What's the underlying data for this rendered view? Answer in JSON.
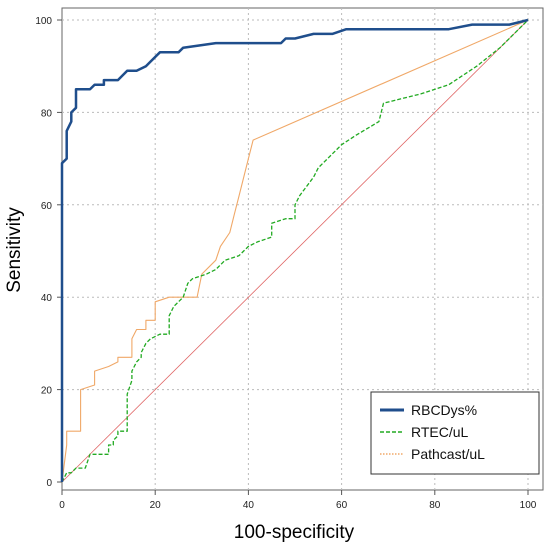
{
  "chart_data": {
    "type": "line",
    "title": "",
    "xlabel": "100-specificity",
    "ylabel": "Sensitivity",
    "xlim": [
      0,
      100
    ],
    "ylim": [
      0,
      100
    ],
    "xticks": [
      0,
      20,
      40,
      60,
      80,
      100
    ],
    "yticks": [
      0,
      20,
      40,
      60,
      80,
      100
    ],
    "grid": true,
    "legend_position": "bottom-right",
    "series": [
      {
        "name": "RBCDys%",
        "color": "#1f4e8c",
        "style": "solid",
        "points": [
          [
            0,
            0
          ],
          [
            0,
            69
          ],
          [
            1,
            70
          ],
          [
            1,
            76
          ],
          [
            2,
            78
          ],
          [
            2,
            80
          ],
          [
            3,
            81
          ],
          [
            3,
            85
          ],
          [
            4,
            85
          ],
          [
            6,
            85
          ],
          [
            7,
            86
          ],
          [
            9,
            86
          ],
          [
            9,
            87
          ],
          [
            12,
            87
          ],
          [
            13,
            88
          ],
          [
            14,
            89
          ],
          [
            16,
            89
          ],
          [
            18,
            90
          ],
          [
            19,
            91
          ],
          [
            21,
            93
          ],
          [
            25,
            93
          ],
          [
            26,
            94
          ],
          [
            33,
            95
          ],
          [
            40,
            95
          ],
          [
            42,
            95
          ],
          [
            47,
            95
          ],
          [
            48,
            96
          ],
          [
            50,
            96
          ],
          [
            54,
            97
          ],
          [
            58,
            97
          ],
          [
            61,
            98
          ],
          [
            75,
            98
          ],
          [
            83,
            98
          ],
          [
            88,
            99
          ],
          [
            96,
            99
          ],
          [
            100,
            100
          ]
        ]
      },
      {
        "name": "RTEC/uL",
        "color": "#22aa22",
        "style": "dashed",
        "points": [
          [
            0,
            0
          ],
          [
            1,
            2
          ],
          [
            2,
            2
          ],
          [
            3,
            3
          ],
          [
            5,
            3
          ],
          [
            6,
            6
          ],
          [
            10,
            6
          ],
          [
            10,
            8
          ],
          [
            11,
            8
          ],
          [
            11,
            9
          ],
          [
            12,
            10
          ],
          [
            12,
            11
          ],
          [
            14,
            11
          ],
          [
            14,
            15
          ],
          [
            14,
            19
          ],
          [
            15,
            22
          ],
          [
            15,
            24
          ],
          [
            16,
            26
          ],
          [
            17,
            27
          ],
          [
            17,
            28
          ],
          [
            18,
            30
          ],
          [
            19,
            31
          ],
          [
            21,
            32
          ],
          [
            23,
            32
          ],
          [
            23,
            36
          ],
          [
            24,
            38
          ],
          [
            25,
            39
          ],
          [
            26,
            40
          ],
          [
            27,
            43
          ],
          [
            28,
            44
          ],
          [
            31,
            45
          ],
          [
            33,
            46
          ],
          [
            35,
            48
          ],
          [
            38,
            49
          ],
          [
            39,
            50
          ],
          [
            40,
            51
          ],
          [
            42,
            52
          ],
          [
            45,
            53
          ],
          [
            45,
            56
          ],
          [
            48,
            57
          ],
          [
            50,
            57
          ],
          [
            50,
            60
          ],
          [
            51,
            62
          ],
          [
            54,
            66
          ],
          [
            55,
            68
          ],
          [
            57,
            70
          ],
          [
            60,
            73
          ],
          [
            63,
            75
          ],
          [
            68,
            78
          ],
          [
            69,
            82
          ],
          [
            73,
            83
          ],
          [
            77,
            84
          ],
          [
            83,
            86
          ],
          [
            89,
            90
          ],
          [
            94,
            94
          ],
          [
            100,
            100
          ]
        ]
      },
      {
        "name": "Pathcast/uL",
        "color": "#f0a868",
        "style": "dotted",
        "points": [
          [
            0,
            0
          ],
          [
            1,
            8
          ],
          [
            1,
            11
          ],
          [
            4,
            11
          ],
          [
            4,
            20
          ],
          [
            7,
            21
          ],
          [
            7,
            24
          ],
          [
            10,
            25
          ],
          [
            12,
            26
          ],
          [
            12,
            27
          ],
          [
            15,
            27
          ],
          [
            15,
            31
          ],
          [
            16,
            33
          ],
          [
            18,
            33
          ],
          [
            18,
            35
          ],
          [
            20,
            35
          ],
          [
            20,
            39
          ],
          [
            23,
            40
          ],
          [
            29,
            40
          ],
          [
            30,
            45
          ],
          [
            33,
            48
          ],
          [
            34,
            51
          ],
          [
            36,
            54
          ],
          [
            37,
            58
          ],
          [
            38,
            62
          ],
          [
            40,
            70
          ],
          [
            41,
            74
          ],
          [
            100,
            100
          ]
        ]
      },
      {
        "name": "",
        "color": "#e06666",
        "style": "solid",
        "points": [
          [
            0,
            0
          ],
          [
            100,
            100
          ]
        ]
      }
    ]
  }
}
